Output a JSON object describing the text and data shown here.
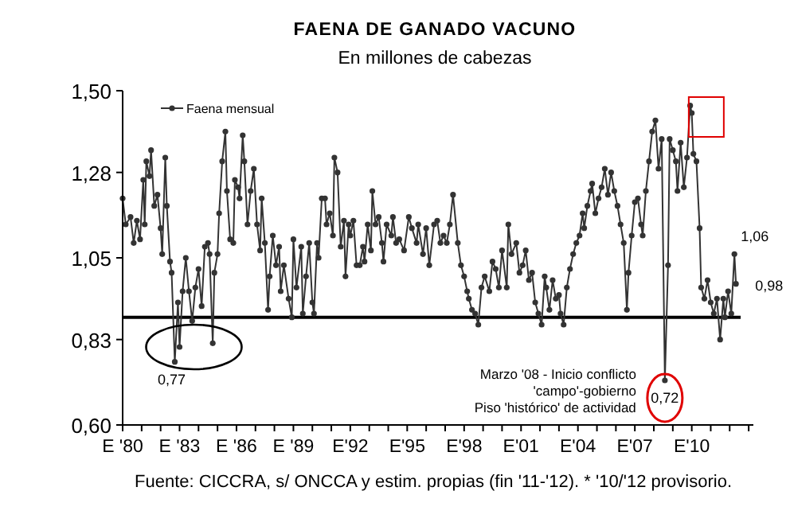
{
  "chart_data": {
    "type": "line",
    "title": "FAENA DE GANADO VACUNO",
    "subtitle": "En millones de cabezas",
    "x": [
      "1980-01",
      "1980-03",
      "1980-06",
      "1980-08",
      "1980-10",
      "1980-12",
      "1981-02",
      "1981-03",
      "1981-04",
      "1981-06",
      "1981-07",
      "1981-09",
      "1981-11",
      "1982-01",
      "1982-02",
      "1982-04",
      "1982-05",
      "1982-07",
      "1982-08",
      "1982-10",
      "1982-12",
      "1983-01",
      "1983-03",
      "1983-05",
      "1983-07",
      "1983-09",
      "1983-11",
      "1984-01",
      "1984-03",
      "1984-05",
      "1984-07",
      "1984-08",
      "1984-10",
      "1984-11",
      "1985-01",
      "1985-02",
      "1985-04",
      "1985-06",
      "1985-07",
      "1985-09",
      "1985-11",
      "1985-12",
      "1986-02",
      "1986-03",
      "1986-05",
      "1986-06",
      "1986-08",
      "1986-10",
      "1986-12",
      "1987-02",
      "1987-04",
      "1987-05",
      "1987-07",
      "1987-09",
      "1987-10",
      "1987-12",
      "1988-02",
      "1988-04",
      "1988-05",
      "1988-07",
      "1988-10",
      "1988-12",
      "1989-01",
      "1989-03",
      "1989-06",
      "1989-07",
      "1989-09",
      "1989-11",
      "1990-01",
      "1990-02",
      "1990-04",
      "1990-05",
      "1990-07",
      "1990-09",
      "1990-10",
      "1990-12",
      "1991-02",
      "1991-03",
      "1991-05",
      "1991-07",
      "1991-09",
      "1991-10",
      "1991-12",
      "1992-01",
      "1992-03",
      "1992-05",
      "1992-07",
      "1992-09",
      "1992-10",
      "1992-12",
      "1993-02",
      "1993-03",
      "1993-05",
      "1993-07",
      "1993-09",
      "1993-10",
      "1993-12",
      "1994-03",
      "1994-04",
      "1994-06",
      "1994-08",
      "1994-11",
      "1995-02",
      "1995-04",
      "1995-07",
      "1995-08",
      "1995-11",
      "1996-01",
      "1996-03",
      "1996-06",
      "1996-08",
      "1996-10",
      "1996-12",
      "1997-02",
      "1997-04",
      "1997-06",
      "1997-09",
      "1997-11",
      "1998-01",
      "1998-03",
      "1998-04",
      "1998-06",
      "1998-08",
      "1998-10",
      "1998-12",
      "1999-02",
      "1999-05",
      "1999-07",
      "1999-09",
      "1999-11",
      "2000-01",
      "2000-04",
      "2000-05",
      "2000-07",
      "2000-10",
      "2000-12",
      "2001-02",
      "2001-04",
      "2001-06",
      "2001-08",
      "2001-10",
      "2001-12",
      "2002-02",
      "2002-04",
      "2002-05",
      "2002-07",
      "2002-09",
      "2002-11",
      "2003-01",
      "2003-02",
      "2003-04",
      "2003-06",
      "2003-08",
      "2003-10",
      "2003-12",
      "2004-02",
      "2004-04",
      "2004-05",
      "2004-07",
      "2004-09",
      "2004-10",
      "2004-12",
      "2005-02",
      "2005-04",
      "2005-06",
      "2005-08",
      "2005-10",
      "2005-12",
      "2006-02",
      "2006-04",
      "2006-06",
      "2006-08",
      "2006-09",
      "2006-11",
      "2007-01",
      "2007-03",
      "2007-05",
      "2007-06",
      "2007-08",
      "2007-10",
      "2007-12",
      "2008-02",
      "2008-04",
      "2008-06",
      "2008-08",
      "2008-10",
      "2008-11",
      "2009-01",
      "2009-03",
      "2009-04",
      "2009-06",
      "2009-08",
      "2009-10",
      "2009-12",
      "2010-01",
      "2010-02",
      "2010-04",
      "2010-06",
      "2010-07",
      "2010-09",
      "2010-11",
      "2011-01",
      "2011-03",
      "2011-05",
      "2011-07",
      "2011-09",
      "2011-10",
      "2011-12",
      "2012-02",
      "2012-04",
      "2012-05"
    ],
    "series": [
      {
        "name": "Faena mensual",
        "color": "#333333",
        "values": [
          1.21,
          1.14,
          1.16,
          1.09,
          1.15,
          1.1,
          1.26,
          1.14,
          1.31,
          1.27,
          1.34,
          1.19,
          1.22,
          1.13,
          1.06,
          1.32,
          1.19,
          1.04,
          1.01,
          0.77,
          0.93,
          0.81,
          0.96,
          1.05,
          0.96,
          0.88,
          0.97,
          1.02,
          0.92,
          1.08,
          1.09,
          1.06,
          0.82,
          1.01,
          1.06,
          1.17,
          1.31,
          1.39,
          1.23,
          1.1,
          1.09,
          1.26,
          1.24,
          1.21,
          1.38,
          1.31,
          1.14,
          1.23,
          1.29,
          1.14,
          1.07,
          1.21,
          1.09,
          0.91,
          1.0,
          1.11,
          1.03,
          1.08,
          0.96,
          1.03,
          0.94,
          0.89,
          1.1,
          0.97,
          1.08,
          0.9,
          1.0,
          1.09,
          0.93,
          0.9,
          1.09,
          1.05,
          1.21,
          1.21,
          1.14,
          1.17,
          1.11,
          1.32,
          1.28,
          1.08,
          1.15,
          1.0,
          1.14,
          1.11,
          1.15,
          1.03,
          1.03,
          1.08,
          1.04,
          1.14,
          1.07,
          1.23,
          1.14,
          1.16,
          1.09,
          1.04,
          1.14,
          1.11,
          1.16,
          1.09,
          1.1,
          1.07,
          1.16,
          1.13,
          1.09,
          1.14,
          1.06,
          1.13,
          1.03,
          1.14,
          1.15,
          1.09,
          1.11,
          1.09,
          1.14,
          1.22,
          1.09,
          1.03,
          1.0,
          0.96,
          0.94,
          0.91,
          0.9,
          0.87,
          0.97,
          1.0,
          0.96,
          1.04,
          1.02,
          0.97,
          1.07,
          0.97,
          1.14,
          1.06,
          1.09,
          1.01,
          1.03,
          1.07,
          0.99,
          1.01,
          0.93,
          0.9,
          0.87,
          1.0,
          0.97,
          0.91,
          0.99,
          0.94,
          0.95,
          0.9,
          0.87,
          0.97,
          1.02,
          1.06,
          1.09,
          1.11,
          1.17,
          1.13,
          1.19,
          1.23,
          1.25,
          1.17,
          1.21,
          1.24,
          1.29,
          1.22,
          1.28,
          1.23,
          1.19,
          1.14,
          1.09,
          0.91,
          1.01,
          1.11,
          1.2,
          1.21,
          1.14,
          1.11,
          1.23,
          1.31,
          1.39,
          1.42,
          1.29,
          1.37,
          0.72,
          1.03,
          1.37,
          1.34,
          1.31,
          1.23,
          1.36,
          1.24,
          1.32,
          1.46,
          1.44,
          1.33,
          1.31,
          1.13,
          0.97,
          0.94,
          0.99,
          0.93,
          0.9,
          0.94,
          0.83,
          0.94,
          0.89,
          0.96,
          0.9,
          1.06,
          0.98
        ]
      }
    ],
    "xlim": [
      "1980-01",
      "2013-04"
    ],
    "xticks": [
      {
        "value": "1980-01",
        "label": "E '80"
      },
      {
        "value": "1981-01",
        "label": null
      },
      {
        "value": "1982-01",
        "label": null
      },
      {
        "value": "1983-01",
        "label": "E '83"
      },
      {
        "value": "1984-01",
        "label": null
      },
      {
        "value": "1985-01",
        "label": null
      },
      {
        "value": "1986-01",
        "label": "E '86"
      },
      {
        "value": "1987-01",
        "label": null
      },
      {
        "value": "1988-01",
        "label": null
      },
      {
        "value": "1989-01",
        "label": "E '89"
      },
      {
        "value": "1990-01",
        "label": null
      },
      {
        "value": "1991-01",
        "label": null
      },
      {
        "value": "1992-01",
        "label": "E'92"
      },
      {
        "value": "1993-01",
        "label": null
      },
      {
        "value": "1994-01",
        "label": null
      },
      {
        "value": "1995-01",
        "label": "E'95"
      },
      {
        "value": "1996-01",
        "label": null
      },
      {
        "value": "1997-01",
        "label": null
      },
      {
        "value": "1998-01",
        "label": "E'98"
      },
      {
        "value": "1999-01",
        "label": null
      },
      {
        "value": "2000-01",
        "label": null
      },
      {
        "value": "2001-01",
        "label": "E'01"
      },
      {
        "value": "2002-01",
        "label": null
      },
      {
        "value": "2003-01",
        "label": null
      },
      {
        "value": "2004-01",
        "label": "E'04"
      },
      {
        "value": "2005-01",
        "label": null
      },
      {
        "value": "2006-01",
        "label": null
      },
      {
        "value": "2007-01",
        "label": "E'07"
      },
      {
        "value": "2008-01",
        "label": null
      },
      {
        "value": "2009-01",
        "label": null
      },
      {
        "value": "2010-01",
        "label": "E'10"
      },
      {
        "value": "2011-01",
        "label": null
      },
      {
        "value": "2012-01",
        "label": null
      },
      {
        "value": "2013-01",
        "label": null
      }
    ],
    "ylim": [
      0.6,
      1.5
    ],
    "yticks": [
      {
        "value": 0.6,
        "label": "0,60"
      },
      {
        "value": 0.83,
        "label": "0,83"
      },
      {
        "value": 1.05,
        "label": "1,05"
      },
      {
        "value": 1.28,
        "label": "1,28"
      },
      {
        "value": 1.5,
        "label": "1,50"
      }
    ],
    "ref_lines": [
      {
        "axis": "y",
        "value": 0.89,
        "color": "#000000"
      }
    ],
    "annotations": [
      {
        "text": "0,77",
        "x": "1982-10",
        "y": 0.77
      },
      {
        "text": "0,72",
        "x": "2008-08",
        "y": 0.72
      },
      {
        "text": "1,06",
        "x": "2012-04",
        "y": 1.06
      },
      {
        "text": "0,98",
        "x": "2012-05",
        "y": 0.98
      },
      "Marzo '08 - Inicio conflicto\n'campo'-gobierno\nPiso 'histórico' de actividad",
      "Fuente: CICCRA, s/ ONCCA y estim. propias (fin '11-'12). * '10/'12 provisorio."
    ],
    "legend": "top left",
    "marker": "circle",
    "line_style": "solid",
    "grid": false
  }
}
